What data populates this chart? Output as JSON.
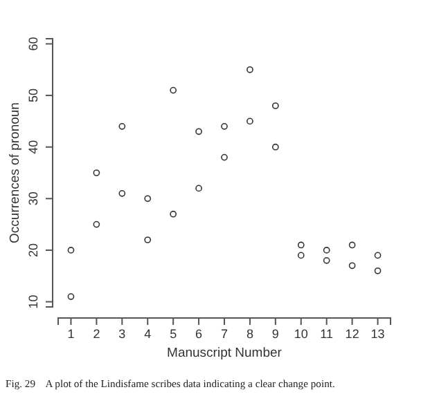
{
  "chart_data": {
    "type": "scatter",
    "xlabel": "Manuscript Number",
    "ylabel": "Occurrences of pronoun",
    "x": [
      1,
      1,
      2,
      2,
      3,
      3,
      4,
      4,
      5,
      5,
      6,
      6,
      7,
      7,
      8,
      8,
      9,
      9,
      10,
      10,
      11,
      11,
      12,
      12,
      13,
      13
    ],
    "values": [
      20,
      11,
      35,
      25,
      44,
      31,
      30,
      22,
      51,
      27,
      43,
      32,
      44,
      38,
      55,
      45,
      48,
      40,
      21,
      19,
      20,
      18,
      21,
      17,
      19,
      16
    ],
    "color": "#333333",
    "marker": "circle",
    "xlim": [
      0.5,
      13.5
    ],
    "xticks": [
      1,
      2,
      3,
      4,
      5,
      6,
      7,
      8,
      9,
      10,
      11,
      12,
      13
    ],
    "ylim": [
      9,
      61
    ],
    "yticks": [
      10,
      20,
      30,
      40,
      50,
      60
    ],
    "annotations": [
      "Fig. 29    A plot of the Lindisfame scribes data indicating a clear change point."
    ]
  }
}
